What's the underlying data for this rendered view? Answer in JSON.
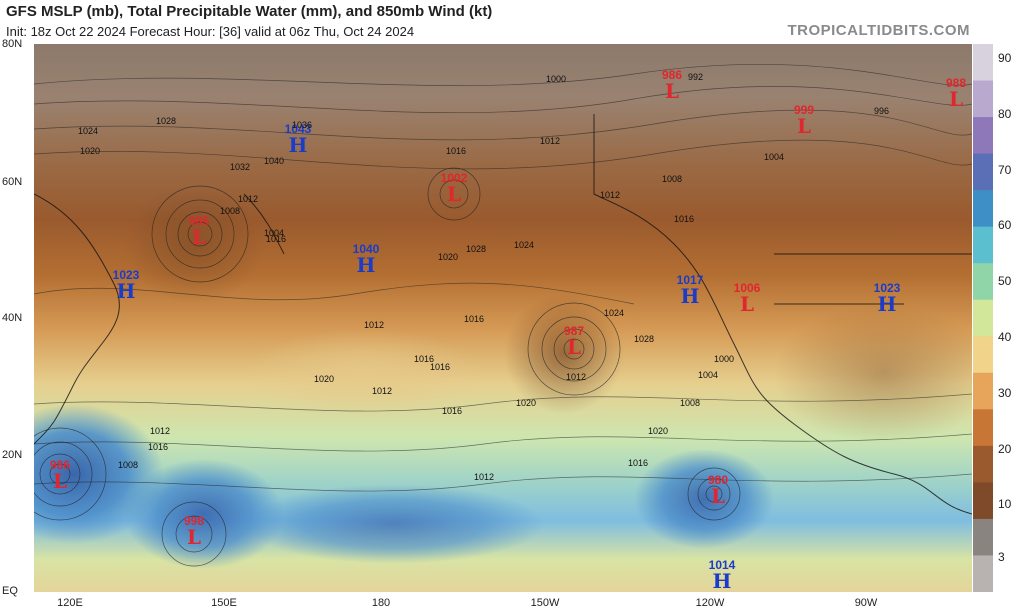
{
  "header": {
    "title": "GFS MSLP (mb), Total Precipitable Water (mm), and 850mb Wind (kt)",
    "subtitle": "Init: 18z Oct 22 2024   Forecast Hour: [36]   valid at 06z Thu, Oct 24 2024",
    "credit": "TROPICALTIDBITS.COM"
  },
  "axes": {
    "lat_labels": [
      "80N",
      "60N",
      "40N",
      "20N",
      "EQ"
    ],
    "lon_labels": [
      "120E",
      "150E",
      "180",
      "150W",
      "120W",
      "90W"
    ]
  },
  "colorbar": {
    "labels": [
      "90",
      "80",
      "70",
      "60",
      "50",
      "40",
      "30",
      "20",
      "10",
      "3"
    ],
    "colors": [
      "#d7d2de",
      "#b9a9cf",
      "#8e78ba",
      "#5a6fb5",
      "#3f8fc7",
      "#5cbfcf",
      "#8fd5a8",
      "#d3e79a",
      "#f1d48a",
      "#e6a55a",
      "#c77636",
      "#9a5a2e",
      "#7e4a2a",
      "#8a8480",
      "#b8b3b0"
    ]
  },
  "systems": [
    {
      "type": "L",
      "value": "986",
      "letter": "L"
    },
    {
      "type": "L",
      "value": "999",
      "letter": "L"
    },
    {
      "type": "L",
      "value": "988",
      "letter": "L"
    },
    {
      "type": "H",
      "value": "1043",
      "letter": "H"
    },
    {
      "type": "L",
      "value": "1002",
      "letter": "L"
    },
    {
      "type": "L",
      "value": "985",
      "letter": "L"
    },
    {
      "type": "H",
      "value": "1040",
      "letter": "H"
    },
    {
      "type": "H",
      "value": "1023",
      "letter": "H"
    },
    {
      "type": "H",
      "value": "1017",
      "letter": "H"
    },
    {
      "type": "L",
      "value": "1006",
      "letter": "L"
    },
    {
      "type": "H",
      "value": "1023",
      "letter": "H"
    },
    {
      "type": "L",
      "value": "987",
      "letter": "L"
    },
    {
      "type": "L",
      "value": "986",
      "letter": "L"
    },
    {
      "type": "L",
      "value": "998",
      "letter": "L"
    },
    {
      "type": "L",
      "value": "980",
      "letter": "L"
    },
    {
      "type": "H",
      "value": "1014",
      "letter": "H"
    }
  ],
  "isobar_labels": [
    "1000",
    "1028",
    "1024",
    "1020",
    "1036",
    "1040",
    "1032",
    "1012",
    "1016",
    "1008",
    "1004",
    "992",
    "996",
    "1012",
    "1016",
    "1024",
    "1028",
    "1020",
    "1016",
    "1012",
    "1008",
    "1004",
    "1016",
    "1012",
    "1016",
    "1020",
    "1016",
    "1012",
    "1016",
    "1020",
    "1012",
    "1008",
    "1004",
    "1000",
    "1024",
    "1028",
    "1016",
    "1012",
    "1012",
    "1008",
    "1016",
    "1020"
  ]
}
